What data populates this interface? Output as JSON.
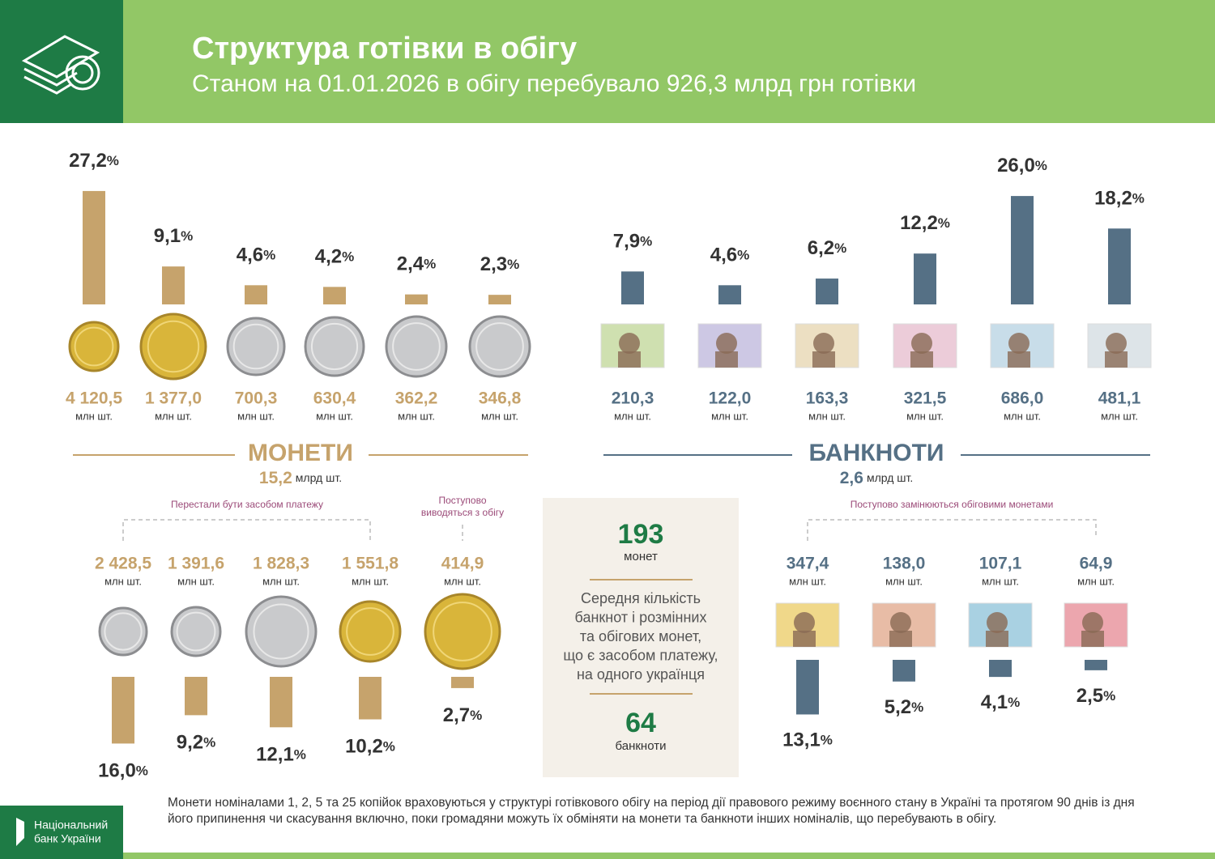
{
  "header": {
    "title": "Структура готівки в обігу",
    "subtitle": "Станом на 01.01.2026 в обігу перебувало 926,3 млрд грн готівки"
  },
  "percent_sign": "%",
  "count_unit": "млн шт.",
  "coins": {
    "heading": "МОНЕТИ",
    "total": "15,2",
    "total_unit": "млрд шт.",
    "items": [
      {
        "value": 27.2,
        "label": "27,2",
        "count": "4 120,5"
      },
      {
        "value": 9.1,
        "label": "9,1",
        "count": "1 377,0"
      },
      {
        "value": 4.6,
        "label": "4,6",
        "count": "700,3"
      },
      {
        "value": 4.2,
        "label": "4,2",
        "count": "630,4"
      },
      {
        "value": 2.4,
        "label": "2,4",
        "count": "362,2"
      },
      {
        "value": 2.3,
        "label": "2,3",
        "count": "346,8"
      }
    ],
    "withdrawn_note": "Перестали бути засобом платежу",
    "phasing_note": [
      "Поступово",
      "виводяться з обігу"
    ],
    "legacy": [
      {
        "value": 16.0,
        "label": "16,0",
        "count": "2 428,5"
      },
      {
        "value": 9.2,
        "label": "9,2",
        "count": "1 391,6"
      },
      {
        "value": 12.1,
        "label": "12,1",
        "count": "1 828,3"
      },
      {
        "value": 10.2,
        "label": "10,2",
        "count": "1 551,8"
      },
      {
        "value": 2.7,
        "label": "2,7",
        "count": "414,9"
      }
    ]
  },
  "banknotes": {
    "heading": "БАНКНОТИ",
    "total": "2,6",
    "total_unit": "млрд шт.",
    "items": [
      {
        "value": 7.9,
        "label": "7,9",
        "count": "210,3"
      },
      {
        "value": 4.6,
        "label": "4,6",
        "count": "122,0"
      },
      {
        "value": 6.2,
        "label": "6,2",
        "count": "163,3"
      },
      {
        "value": 12.2,
        "label": "12,2",
        "count": "321,5"
      },
      {
        "value": 26.0,
        "label": "26,0",
        "count": "686,0"
      },
      {
        "value": 18.2,
        "label": "18,2",
        "count": "481,1"
      }
    ],
    "replaced_note": "Поступово замінюються обіговими монетами",
    "legacy": [
      {
        "value": 13.1,
        "label": "13,1",
        "count": "347,4"
      },
      {
        "value": 5.2,
        "label": "5,2",
        "count": "138,0"
      },
      {
        "value": 4.1,
        "label": "4,1",
        "count": "107,1"
      },
      {
        "value": 2.5,
        "label": "2,5",
        "count": "64,9"
      }
    ]
  },
  "per_capita": {
    "coins": "193",
    "coins_label": "монет",
    "description": [
      "Середня кількість",
      "банкнот і розмінних",
      "та обігових монет,",
      "що є засобом платежу,",
      "на одного українця"
    ],
    "banknotes": "64",
    "banknotes_label": "банкноти"
  },
  "footer": {
    "logo": [
      "Національний",
      "банк України"
    ],
    "note": "Монети  номіналами 1, 2, 5 та 25 копійок враховуються у структурі готівкового обігу на період дії правового режиму воєнного стану в Україні та протягом 90 днів із дня його припинення чи скасування включно, поки громадяни можуть їх обміняти на монети та банкноти інших номіналів, що перебувають в обігу."
  }
}
